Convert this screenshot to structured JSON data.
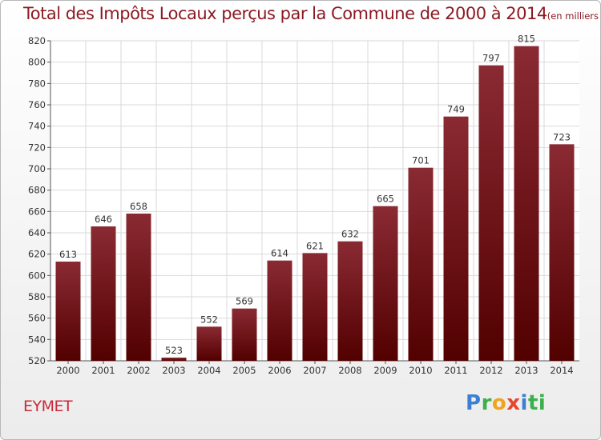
{
  "title": "Total des Impôts Locaux perçus par la Commune de 2000 à 2014",
  "unit": "(en milliers d'€)",
  "commune": "EYMET",
  "logo": [
    "P",
    "r",
    "o",
    "x",
    "i",
    "ti"
  ],
  "colors": {
    "bar_top": "#8a2a33",
    "bar_bottom": "#520000",
    "title": "#8b1a23",
    "grid": "#d9d9d9"
  },
  "chart_data": {
    "type": "bar",
    "title": "Total des Impôts Locaux perçus par la Commune de 2000 à 2014",
    "categories": [
      "2000",
      "2001",
      "2002",
      "2003",
      "2004",
      "2005",
      "2006",
      "2007",
      "2008",
      "2009",
      "2010",
      "2011",
      "2012",
      "2013",
      "2014"
    ],
    "values": [
      613,
      646,
      658,
      523,
      552,
      569,
      614,
      621,
      632,
      665,
      701,
      749,
      797,
      815,
      723
    ],
    "ylim": [
      520,
      820
    ],
    "yticks": [
      520,
      540,
      560,
      580,
      600,
      620,
      640,
      660,
      680,
      700,
      720,
      740,
      760,
      780,
      800,
      820
    ],
    "grid": true,
    "xlabel": "",
    "ylabel": ""
  }
}
